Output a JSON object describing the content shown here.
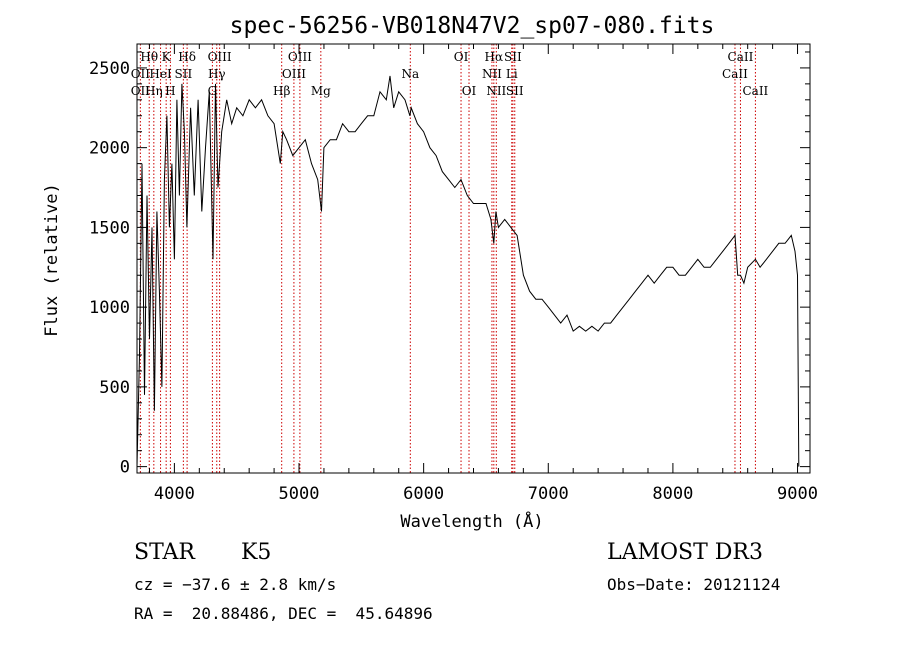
{
  "chart_data": {
    "type": "line",
    "title": "spec-56256-VB018N47V2_sp07-080.fits",
    "xlabel": "Wavelength (Å)",
    "ylabel": "Flux (relative)",
    "xlim": [
      3700,
      9100
    ],
    "ylim": [
      -40,
      2650
    ],
    "x_ticks": [
      4000,
      5000,
      6000,
      7000,
      8000,
      9000
    ],
    "y_ticks": [
      0,
      500,
      1000,
      1500,
      2000,
      2500
    ],
    "grid": false,
    "line_color": "#000000",
    "marker_color": "#cc0000",
    "series": [
      {
        "x": [
          3700,
          3720,
          3740,
          3760,
          3780,
          3800,
          3820,
          3840,
          3860,
          3880,
          3900,
          3920,
          3940,
          3960,
          3980,
          4000,
          4020,
          4040,
          4060,
          4080,
          4100,
          4130,
          4160,
          4190,
          4220,
          4250,
          4280,
          4310,
          4330,
          4350,
          4380,
          4420,
          4460,
          4500,
          4550,
          4600,
          4650,
          4700,
          4750,
          4800,
          4850,
          4870,
          4900,
          4950,
          5000,
          5050,
          5100,
          5150,
          5180,
          5200,
          5250,
          5300,
          5350,
          5400,
          5450,
          5500,
          5550,
          5600,
          5650,
          5700,
          5730,
          5760,
          5800,
          5850,
          5890,
          5900,
          5950,
          6000,
          6050,
          6100,
          6150,
          6200,
          6250,
          6300,
          6350,
          6400,
          6450,
          6500,
          6540,
          6563,
          6580,
          6600,
          6650,
          6700,
          6750,
          6800,
          6850,
          6900,
          6950,
          7000,
          7050,
          7100,
          7150,
          7200,
          7250,
          7300,
          7350,
          7400,
          7450,
          7500,
          7550,
          7600,
          7650,
          7700,
          7750,
          7800,
          7850,
          7900,
          7950,
          8000,
          8050,
          8100,
          8150,
          8200,
          8250,
          8300,
          8350,
          8400,
          8450,
          8498,
          8520,
          8542,
          8570,
          8600,
          8662,
          8700,
          8750,
          8800,
          8850,
          8900,
          8950,
          8980,
          9000,
          9010
        ],
        "y": [
          0,
          700,
          1900,
          450,
          1700,
          800,
          1500,
          350,
          1600,
          1100,
          500,
          1800,
          2200,
          1500,
          1900,
          1300,
          2300,
          1700,
          2400,
          2100,
          1500,
          2250,
          1700,
          2300,
          1600,
          2000,
          2350,
          1300,
          2400,
          1750,
          2100,
          2300,
          2150,
          2250,
          2200,
          2300,
          2250,
          2300,
          2200,
          2150,
          1900,
          2100,
          2050,
          1950,
          2000,
          2050,
          1900,
          1800,
          1600,
          2000,
          2050,
          2050,
          2150,
          2100,
          2100,
          2150,
          2200,
          2200,
          2350,
          2300,
          2450,
          2250,
          2350,
          2300,
          2200,
          2250,
          2150,
          2100,
          2000,
          1950,
          1850,
          1800,
          1750,
          1800,
          1700,
          1650,
          1650,
          1650,
          1550,
          1400,
          1600,
          1500,
          1550,
          1500,
          1450,
          1200,
          1100,
          1050,
          1050,
          1000,
          950,
          900,
          950,
          850,
          880,
          850,
          880,
          850,
          900,
          900,
          950,
          1000,
          1050,
          1100,
          1150,
          1200,
          1150,
          1200,
          1250,
          1250,
          1200,
          1200,
          1250,
          1300,
          1250,
          1250,
          1300,
          1350,
          1400,
          1450,
          1200,
          1200,
          1150,
          1250,
          1300,
          1250,
          1300,
          1350,
          1400,
          1400,
          1450,
          1350,
          1200,
          0
        ]
      }
    ],
    "lines": [
      {
        "name": "Hθ",
        "wl": 3798,
        "row": 1
      },
      {
        "name": "OII",
        "wl": 3727,
        "row": 2
      },
      {
        "name": "OII",
        "wl": 3727,
        "row": 3
      },
      {
        "name": "K",
        "wl": 3934,
        "row": 1
      },
      {
        "name": "HeI",
        "wl": 3889,
        "row": 2
      },
      {
        "name": "Hη",
        "wl": 3835,
        "row": 3
      },
      {
        "name": "Hδ",
        "wl": 4102,
        "row": 1
      },
      {
        "name": "SII",
        "wl": 4072,
        "row": 2
      },
      {
        "name": "H",
        "wl": 3968,
        "row": 3
      },
      {
        "name": "OIII",
        "wl": 4363,
        "row": 1
      },
      {
        "name": "Hγ",
        "wl": 4340,
        "row": 2
      },
      {
        "name": "G",
        "wl": 4305,
        "row": 3
      },
      {
        "name": "OIII",
        "wl": 5007,
        "row": 1
      },
      {
        "name": "OIII",
        "wl": 4959,
        "row": 2
      },
      {
        "name": "Hβ",
        "wl": 4861,
        "row": 3
      },
      {
        "name": "Mg",
        "wl": 5175,
        "row": 3
      },
      {
        "name": "Na",
        "wl": 5893,
        "row": 2
      },
      {
        "name": "OI",
        "wl": 6300,
        "row": 1
      },
      {
        "name": "OI",
        "wl": 6364,
        "row": 3
      },
      {
        "name": "Hα",
        "wl": 6563,
        "row": 1
      },
      {
        "name": "SII",
        "wl": 6716,
        "row": 1
      },
      {
        "name": "NII",
        "wl": 6548,
        "row": 2
      },
      {
        "name": "Li",
        "wl": 6707,
        "row": 2
      },
      {
        "name": "NII",
        "wl": 6583,
        "row": 3
      },
      {
        "name": "SII",
        "wl": 6731,
        "row": 3
      },
      {
        "name": "CaII",
        "wl": 8542,
        "row": 1
      },
      {
        "name": "CaII",
        "wl": 8498,
        "row": 2
      },
      {
        "name": "CaII",
        "wl": 8662,
        "row": 3
      }
    ]
  },
  "info": {
    "object_class": "STAR",
    "subclass": "K5",
    "survey": "LAMOST DR3",
    "cz": "cz = −37.6 ± 2.8 km/s",
    "obs_date": "Obs−Date: 20121124",
    "coords": "RA =  20.88486, DEC =  45.64896"
  }
}
